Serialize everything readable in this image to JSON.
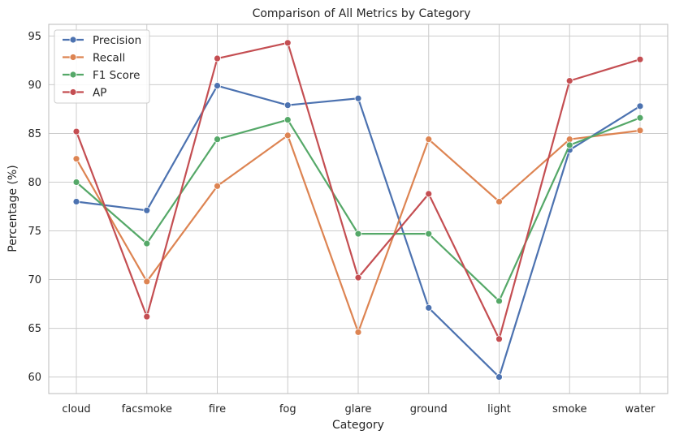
{
  "chart_data": {
    "type": "line",
    "title": "Comparison of All Metrics by Category",
    "xlabel": "Category",
    "ylabel": "Percentage (%)",
    "categories": [
      "cloud",
      "facsmoke",
      "fire",
      "fog",
      "glare",
      "ground",
      "light",
      "smoke",
      "water"
    ],
    "ylim": [
      58.3,
      96.2
    ],
    "yticks": [
      60,
      65,
      70,
      75,
      80,
      85,
      90,
      95
    ],
    "grid": true,
    "legend_position": "top-left",
    "series": [
      {
        "name": "Precision",
        "color": "#4c72b0",
        "values": [
          78.0,
          77.1,
          89.9,
          87.9,
          88.6,
          67.1,
          60.0,
          83.3,
          87.8
        ]
      },
      {
        "name": "Recall",
        "color": "#dd8452",
        "values": [
          82.4,
          69.8,
          79.6,
          84.8,
          64.6,
          84.4,
          78.0,
          84.4,
          85.3
        ]
      },
      {
        "name": "F1 Score",
        "color": "#55a868",
        "values": [
          80.0,
          73.7,
          84.4,
          86.4,
          74.7,
          74.7,
          67.8,
          83.8,
          86.6
        ]
      },
      {
        "name": "AP",
        "color": "#c44e52",
        "values": [
          85.2,
          66.2,
          92.7,
          94.3,
          70.2,
          78.8,
          63.9,
          90.4,
          92.6
        ]
      }
    ]
  }
}
